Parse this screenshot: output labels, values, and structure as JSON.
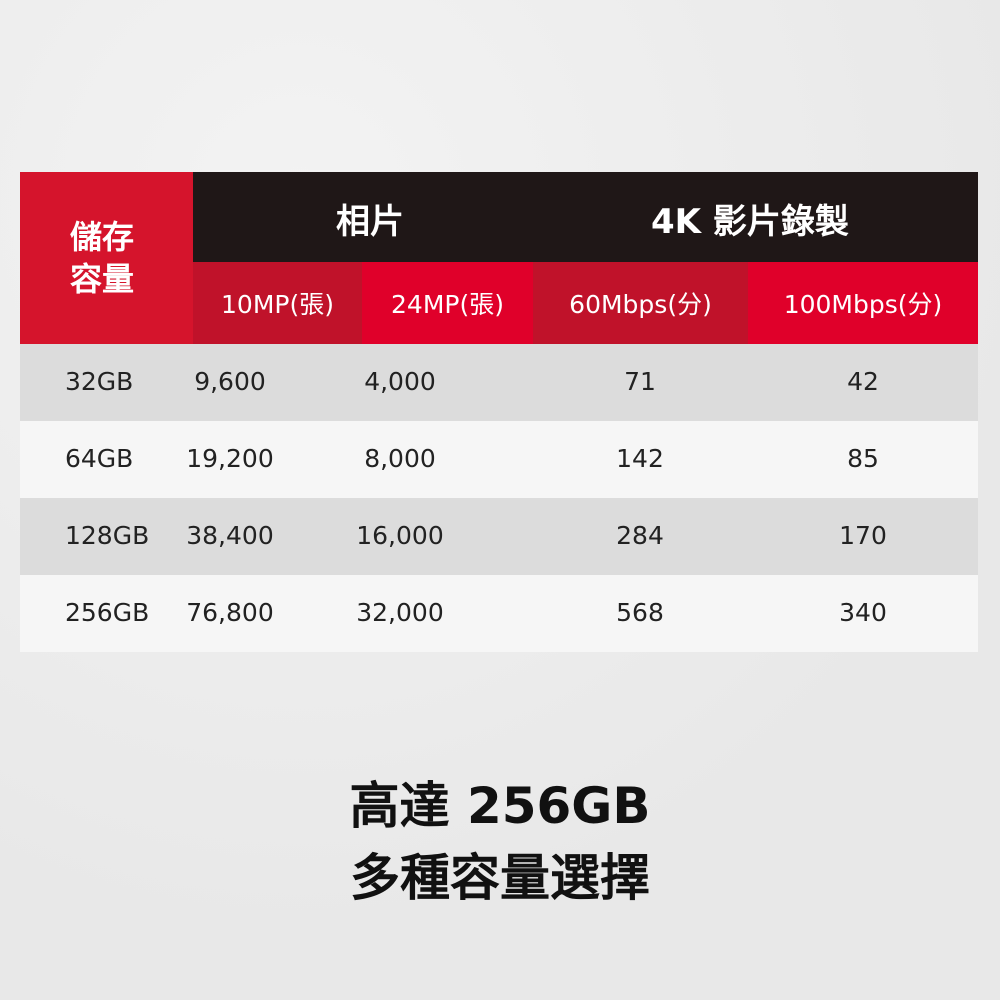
{
  "table": {
    "corner_header": [
      "儲存",
      "容量"
    ],
    "group_headers": [
      "相片",
      "4K 影片錄製"
    ],
    "sub_headers": [
      "10MP(張)",
      "24MP(張)",
      "60Mbps(分)",
      "100Mbps(分)"
    ],
    "rows": [
      [
        "32GB",
        "9,600",
        "4,000",
        "71",
        "42"
      ],
      [
        "64GB",
        "19,200",
        "8,000",
        "142",
        "85"
      ],
      [
        "128GB",
        "38,400",
        "16,000",
        "284",
        "170"
      ],
      [
        "256GB",
        "76,800",
        "32,000",
        "568",
        "340"
      ]
    ]
  },
  "caption": [
    "高達 256GB",
    "多種容量選擇"
  ],
  "colors": {
    "red": "#d5142c",
    "dark_red": "#c0122a",
    "bright_red": "#e0002a",
    "black": "#1f1717",
    "row_gray": "#dcdcdc",
    "row_white": "#f6f6f6"
  }
}
